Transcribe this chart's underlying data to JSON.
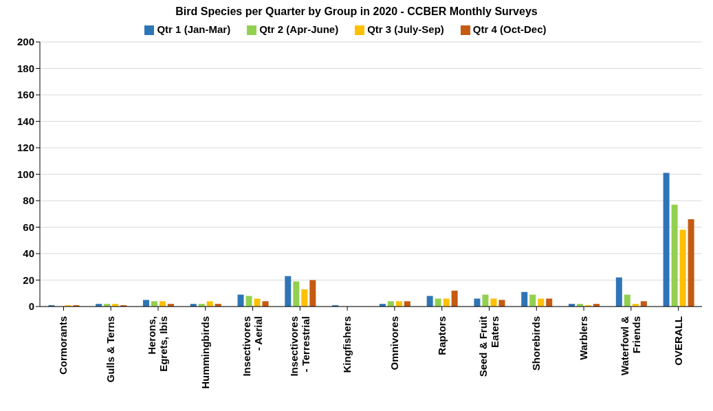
{
  "chart_data": {
    "type": "bar",
    "title": "Bird Species per Quarter by Group in 2020 - CCBER Monthly Surveys",
    "categories": [
      "Cormorants",
      "Gulls & Terns",
      "Herons, Egrets, Ibis",
      "Hummingbirds",
      "Insectivores - Aerial",
      "Insectivores - Terrestrial",
      "Kingfishers",
      "Omnivores",
      "Raptors",
      "Seed & Fruit Eaters",
      "Shorebirds",
      "Warblers",
      "Waterfowl & Friends",
      "OVERALL"
    ],
    "series": [
      {
        "name": "Qtr 1 (Jan-Mar)",
        "color": "#2e75b6",
        "values": [
          1,
          2,
          5,
          2,
          9,
          23,
          1,
          2,
          8,
          6,
          11,
          2,
          22,
          101
        ]
      },
      {
        "name": "Qtr 2 (Apr-June)",
        "color": "#92d050",
        "values": [
          0,
          2,
          4,
          2,
          8,
          19,
          0,
          4,
          6,
          9,
          9,
          2,
          9,
          77
        ]
      },
      {
        "name": "Qtr 3 (July-Sep)",
        "color": "#ffc000",
        "values": [
          1,
          2,
          4,
          4,
          6,
          13,
          0,
          4,
          6,
          6,
          6,
          1,
          2,
          58
        ]
      },
      {
        "name": "Qtr 4 (Oct-Dec)",
        "color": "#c55a11",
        "values": [
          1,
          1,
          2,
          2,
          4,
          20,
          0,
          4,
          12,
          5,
          6,
          2,
          4,
          66
        ]
      }
    ],
    "ylim": [
      0,
      200
    ],
    "yticks": [
      0,
      20,
      40,
      60,
      80,
      100,
      120,
      140,
      160,
      180,
      200
    ],
    "grid": "y",
    "legend": "top"
  }
}
